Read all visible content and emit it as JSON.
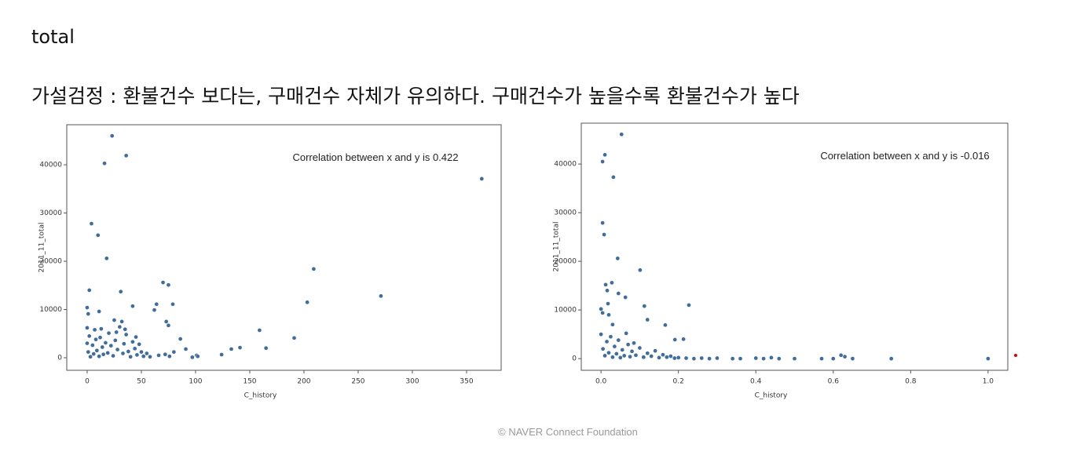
{
  "title": "total",
  "heading": "가설검정 : 환불건수 보다는, 구매건수 자체가 유의하다. 구매건수가 높을수록 환불건수가 높다",
  "footer": "©  NAVER Connect Foundation",
  "chart_data": [
    {
      "type": "scatter",
      "annotation": "Correlation between x and y is 0.422",
      "xlabel": "C_history",
      "ylabel": "2011_11_total",
      "color": "#3f6d9e",
      "xlim": [
        -18.8,
        381.9
      ],
      "ylim": [
        -2600,
        48300
      ],
      "xticks": [
        0,
        50,
        100,
        150,
        200,
        250,
        300,
        350
      ],
      "yticks": [
        0,
        10000,
        20000,
        30000,
        40000
      ],
      "x": [
        23,
        16,
        36,
        364,
        4,
        10,
        18,
        209,
        203,
        271,
        70,
        75,
        31,
        2,
        0,
        1,
        42,
        64,
        79,
        62,
        73,
        75,
        11,
        25,
        32,
        86,
        91,
        101,
        124,
        133,
        141,
        159,
        165,
        191,
        0,
        0,
        1,
        2,
        3,
        5,
        6,
        8,
        9,
        11,
        12,
        14,
        15,
        17,
        19,
        20,
        22,
        24,
        26,
        28,
        30,
        33,
        34,
        36,
        38,
        40,
        42,
        44,
        46,
        48,
        50,
        52,
        55,
        58,
        66,
        72,
        76,
        80,
        97,
        102,
        7,
        13,
        27,
        35,
        45
      ],
      "y": [
        46000,
        40300,
        41900,
        37100,
        27800,
        25400,
        20600,
        18400,
        11500,
        12800,
        15600,
        15100,
        13700,
        14000,
        10400,
        9100,
        10700,
        11100,
        11100,
        9900,
        7500,
        6700,
        9600,
        7800,
        7500,
        3900,
        1800,
        500,
        650,
        1800,
        2100,
        5700,
        2000,
        4100,
        6200,
        3000,
        1200,
        4500,
        200,
        2600,
        800,
        3800,
        1500,
        300,
        4200,
        2200,
        700,
        3100,
        1000,
        5100,
        2500,
        400,
        3600,
        1700,
        6400,
        900,
        2900,
        4800,
        1300,
        200,
        3300,
        1900,
        600,
        2800,
        1200,
        300,
        900,
        200,
        500,
        700,
        300,
        1200,
        100,
        300,
        5800,
        6000,
        5300,
        5900,
        4300
      ]
    },
    {
      "type": "scatter",
      "annotation": "Correlation between x and y is -0.016",
      "xlabel": "C_history",
      "ylabel": "2011_11_total",
      "color": "#3f6d9e",
      "xlim": [
        -0.051,
        1.051
      ],
      "ylim": [
        -2400,
        48400
      ],
      "xticks": [
        {
          "value": 0,
          "label": "0.0"
        },
        0.2,
        0.4,
        0.6,
        0.8,
        {
          "value": 1,
          "label": "1.0"
        }
      ],
      "yticks": [
        0,
        10000,
        20000,
        30000,
        40000
      ],
      "x": [
        0.053,
        0.004,
        0.01,
        0.032,
        0.004,
        0.008,
        0.043,
        0.101,
        0.227,
        0.012,
        0.028,
        0.045,
        0.016,
        0,
        0.004,
        0.018,
        0.112,
        0.063,
        0.166,
        0.191,
        0.213,
        0.12,
        0.02,
        0.03,
        0.22,
        0.24,
        0.26,
        0.28,
        0.3,
        0.34,
        0.36,
        0.4,
        0.42,
        0.44,
        0.46,
        0.5,
        0.57,
        0.6,
        0.62,
        0.63,
        0.65,
        0.75,
        1.0,
        0,
        0.005,
        0.01,
        0.015,
        0.02,
        0.025,
        0.03,
        0.035,
        0.04,
        0.045,
        0.05,
        0.055,
        0.06,
        0.07,
        0.075,
        0.08,
        0.09,
        0.1,
        0.11,
        0.12,
        0.13,
        0.14,
        0.15,
        0.16,
        0.17,
        0.18,
        0.19,
        0.2,
        0.065,
        0.085
      ],
      "y": [
        46100,
        40500,
        41900,
        37300,
        27900,
        25500,
        20600,
        18200,
        11000,
        15200,
        15600,
        13400,
        14000,
        10200,
        9400,
        11300,
        10800,
        12600,
        6900,
        3900,
        4000,
        8000,
        9000,
        7000,
        100,
        0,
        100,
        0,
        100,
        0,
        0,
        100,
        0,
        200,
        0,
        0,
        0,
        0,
        700,
        400,
        0,
        0,
        0,
        5000,
        2000,
        600,
        3500,
        1200,
        4500,
        300,
        2500,
        1000,
        3800,
        200,
        1800,
        600,
        2900,
        400,
        1500,
        700,
        2200,
        300,
        1100,
        500,
        1600,
        200,
        800,
        300,
        500,
        100,
        200,
        5200,
        3200
      ]
    }
  ]
}
